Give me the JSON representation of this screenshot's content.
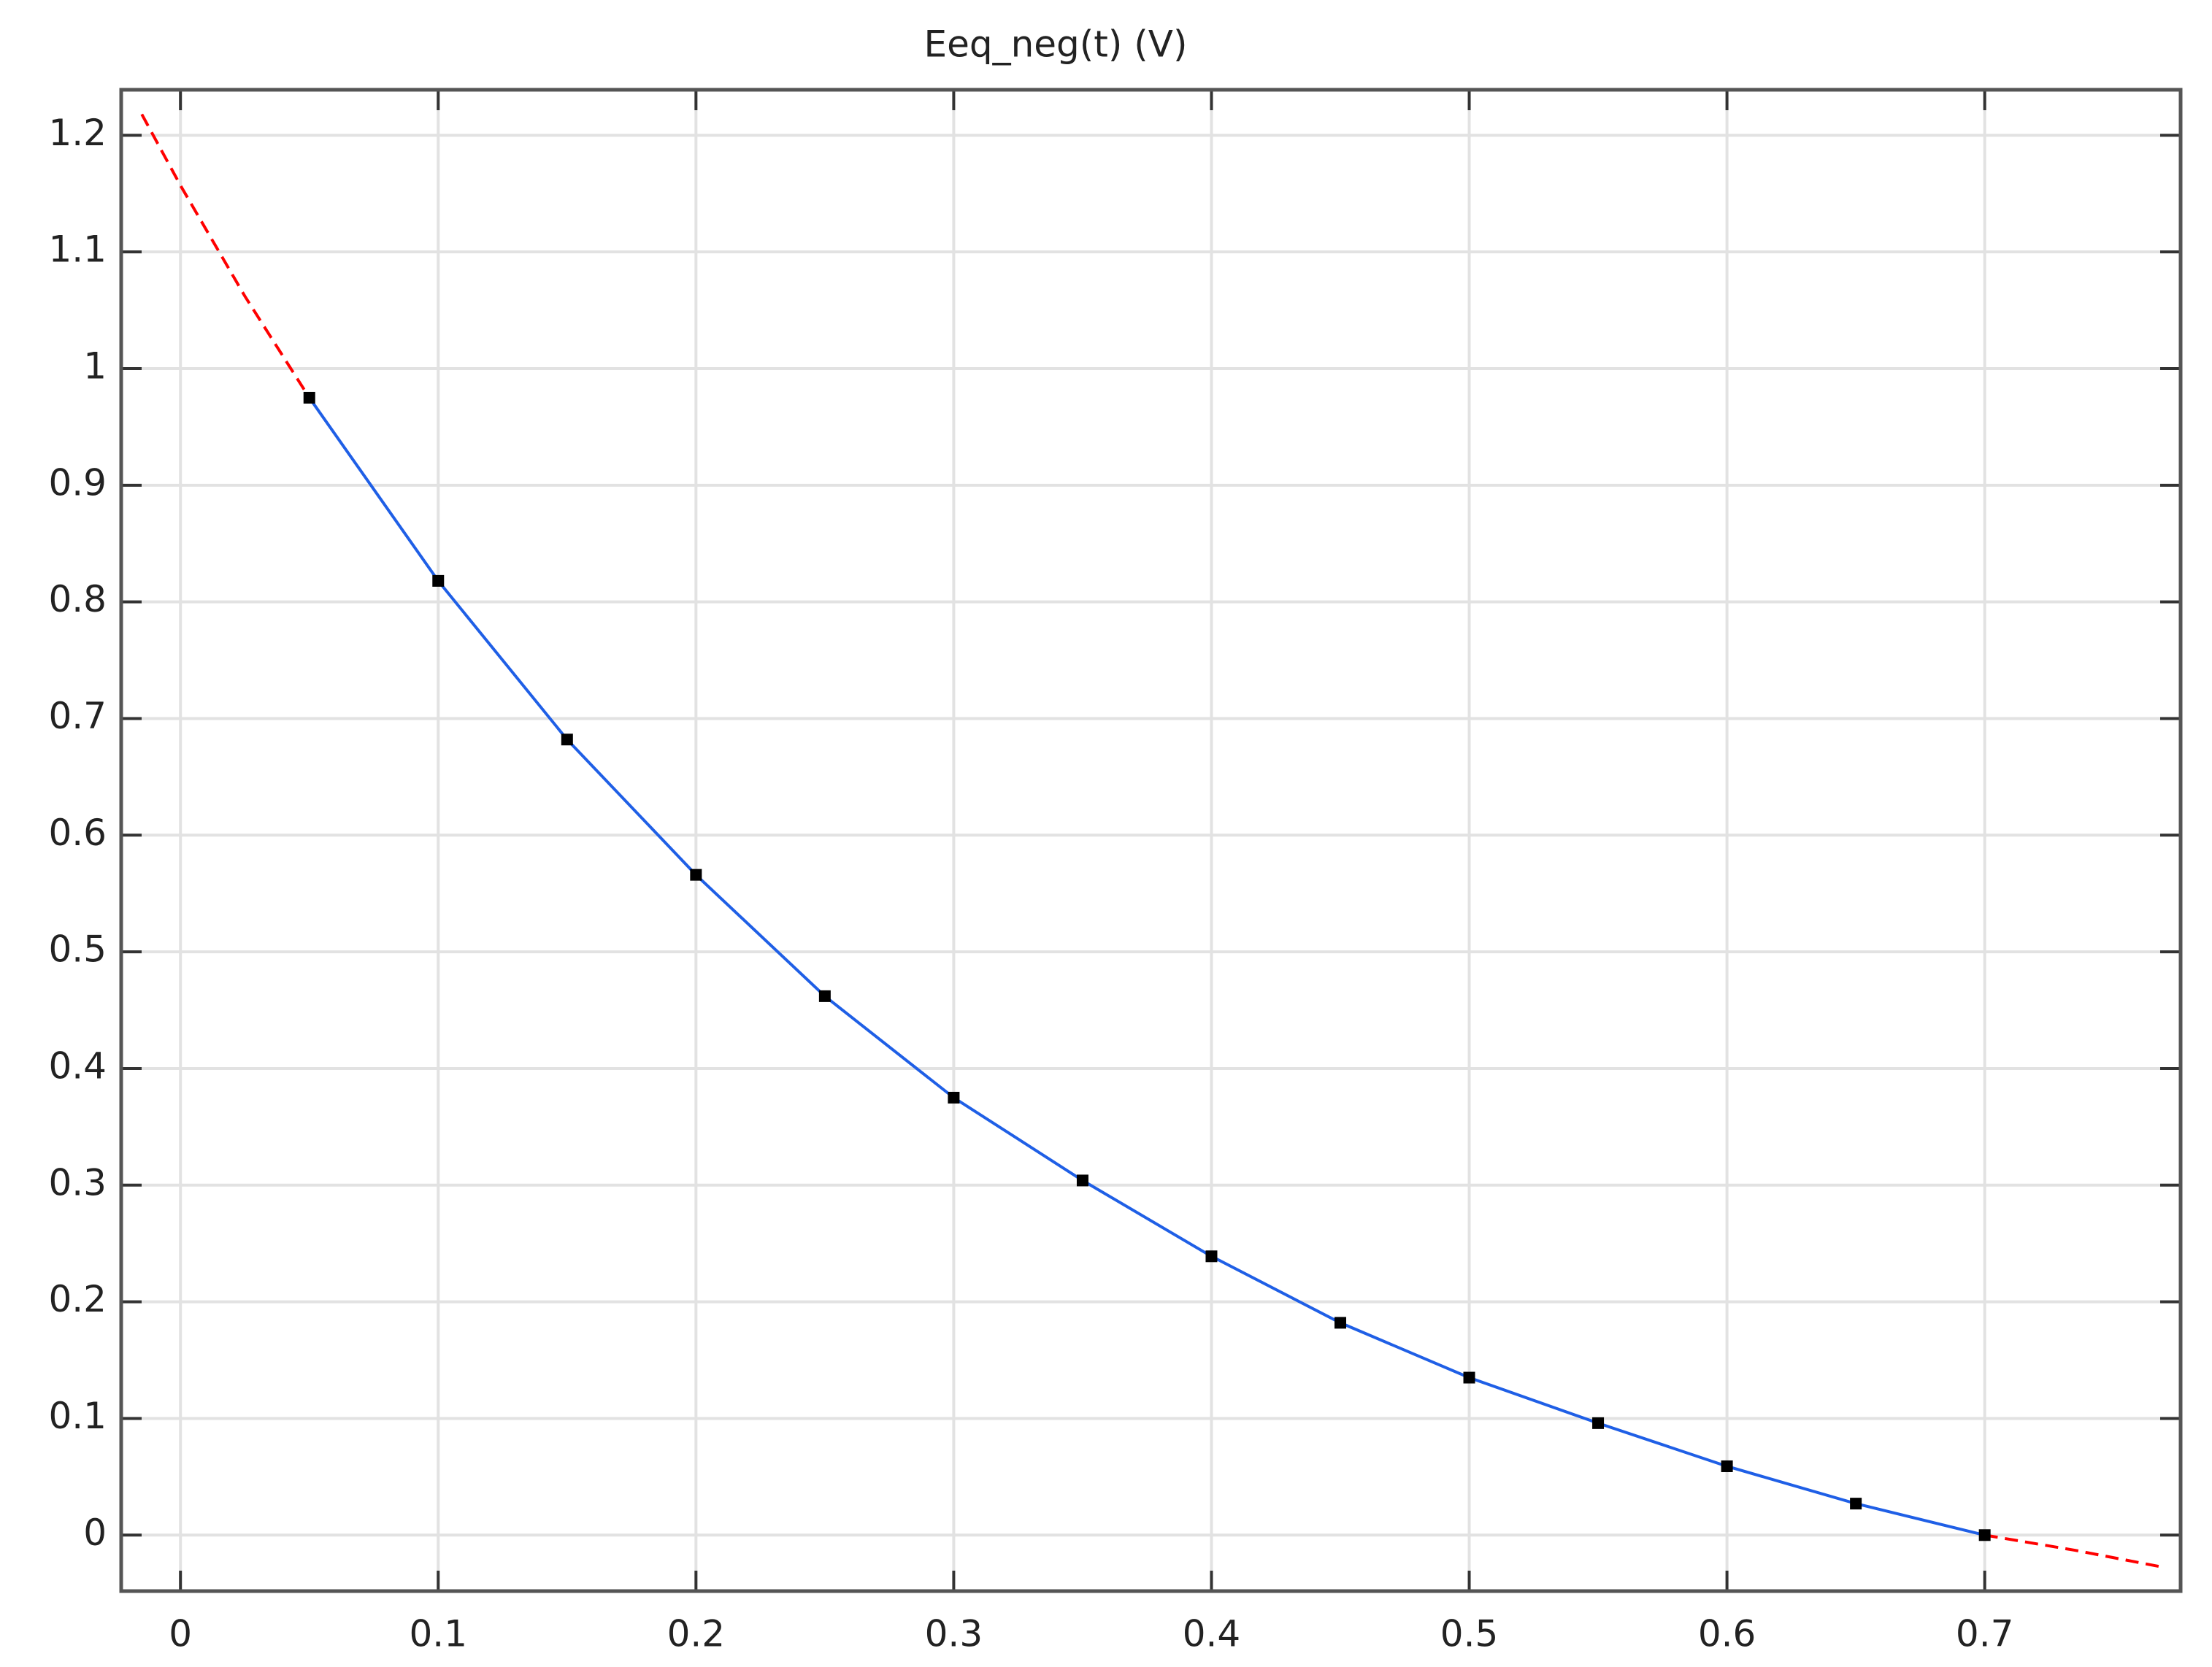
{
  "chart_data": {
    "type": "line",
    "title": "Eeq_neg(t) (V)",
    "xlim": [
      -0.023,
      0.776
    ],
    "ylim": [
      -0.048,
      1.239
    ],
    "xticks": [
      0,
      0.1,
      0.2,
      0.3,
      0.4,
      0.5,
      0.6,
      0.7
    ],
    "yticks": [
      0,
      0.1,
      0.2,
      0.3,
      0.4,
      0.5,
      0.6,
      0.7,
      0.8,
      0.9,
      1,
      1.1,
      1.2
    ],
    "grid": true,
    "series": [
      {
        "style": "line",
        "color": "#1f5fe6",
        "x": [
          0.05,
          0.1,
          0.15,
          0.2,
          0.25,
          0.3,
          0.35,
          0.4,
          0.45,
          0.5,
          0.55,
          0.6,
          0.65,
          0.7
        ],
        "values": [
          0.975,
          0.818,
          0.682,
          0.566,
          0.462,
          0.375,
          0.304,
          0.239,
          0.182,
          0.135,
          0.096,
          0.059,
          0.027,
          0.0
        ]
      },
      {
        "style": "markers",
        "color": "#000000",
        "x": [
          0.05,
          0.1,
          0.15,
          0.2,
          0.25,
          0.3,
          0.35,
          0.4,
          0.45,
          0.5,
          0.55,
          0.6,
          0.65,
          0.7
        ],
        "values": [
          0.975,
          0.818,
          0.682,
          0.566,
          0.462,
          0.375,
          0.304,
          0.239,
          0.182,
          0.135,
          0.096,
          0.059,
          0.027,
          0.0
        ]
      },
      {
        "style": "dashed",
        "color": "#ff0000",
        "x": [
          -0.015,
          0,
          0.025,
          0.05,
          null,
          0.7,
          0.735,
          0.768
        ],
        "values": [
          1.218,
          1.157,
          1.062,
          0.975,
          null,
          0.0,
          -0.013,
          -0.027
        ]
      }
    ]
  }
}
